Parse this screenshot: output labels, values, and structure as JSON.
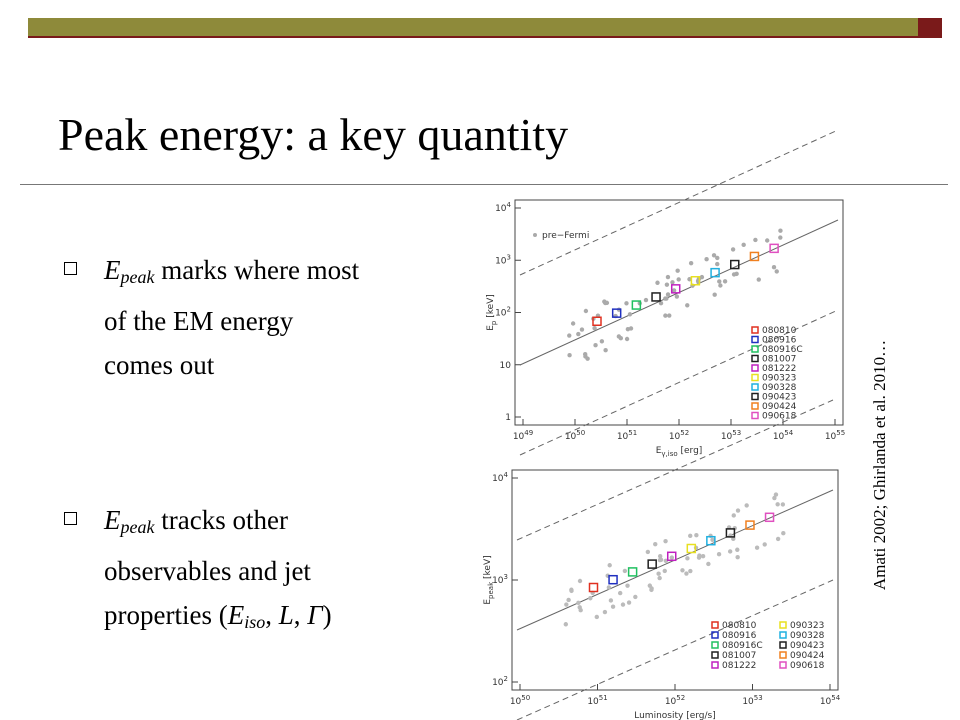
{
  "slide": {
    "title": "Peak energy: a key quantity",
    "bullets": [
      [
        {
          "text": "E",
          "style": "i"
        },
        {
          "text": "peak",
          "style": "sub"
        },
        {
          "text": " marks where most of the EM energy comes out"
        }
      ],
      [
        {
          "text": "E",
          "style": "i"
        },
        {
          "text": "peak",
          "style": "sub"
        },
        {
          "text": " tracks other observables and jet properties ("
        },
        {
          "text": "E",
          "style": "i"
        },
        {
          "text": "iso",
          "style": "sub"
        },
        {
          "text": ", "
        },
        {
          "text": "L",
          "style": "i"
        },
        {
          "text": ", "
        },
        {
          "text": "Γ",
          "style": "i"
        },
        {
          "text": ")"
        }
      ]
    ],
    "citation": "Amati 2002; Ghirlanda et al. 2010…",
    "figures": [
      {
        "xlabel": [
          {
            "text": "E"
          },
          {
            "text": "γ,iso",
            "style": "sub"
          },
          {
            "text": " [erg]"
          }
        ],
        "ylabel": [
          {
            "text": "E"
          },
          {
            "text": "p",
            "style": "sub"
          },
          {
            "text": " [keV]"
          }
        ],
        "xticks": [
          {
            "base": "10",
            "exp": "49"
          },
          {
            "base": "10",
            "exp": "50"
          },
          {
            "base": "10",
            "exp": "51"
          },
          {
            "base": "10",
            "exp": "52"
          },
          {
            "base": "10",
            "exp": "53"
          },
          {
            "base": "10",
            "exp": "54"
          },
          {
            "base": "10",
            "exp": "55"
          }
        ],
        "yticks": [
          {
            "base": "1"
          },
          {
            "base": "10"
          },
          {
            "base": "10",
            "exp": "2"
          },
          {
            "base": "10",
            "exp": "3"
          },
          {
            "base": "10",
            "exp": "4"
          }
        ],
        "note": "pre−Fermi",
        "legend": [
          {
            "name": "080810",
            "color": "#e03020"
          },
          {
            "name": "080916",
            "color": "#2030c0"
          },
          {
            "name": "080916C",
            "color": "#20c060"
          },
          {
            "name": "081007",
            "color": "#202020"
          },
          {
            "name": "081222",
            "color": "#c020c0"
          },
          {
            "name": "090323",
            "color": "#e8e020"
          },
          {
            "name": "090328",
            "color": "#20b0e0"
          },
          {
            "name": "090423",
            "color": "#202020"
          },
          {
            "name": "090424",
            "color": "#f08020"
          },
          {
            "name": "090618",
            "color": "#e050c0"
          }
        ]
      },
      {
        "xlabel": [
          {
            "text": "Luminosity [erg/s]"
          }
        ],
        "ylabel": [
          {
            "text": "E"
          },
          {
            "text": "peak",
            "style": "sub"
          },
          {
            "text": " [keV]"
          }
        ],
        "xticks": [
          {
            "base": "10",
            "exp": "50"
          },
          {
            "base": "10",
            "exp": "51"
          },
          {
            "base": "10",
            "exp": "52"
          },
          {
            "base": "10",
            "exp": "53"
          },
          {
            "base": "10",
            "exp": "54"
          }
        ],
        "yticks": [
          {
            "base": "10",
            "exp": "2"
          },
          {
            "base": "10",
            "exp": "3"
          },
          {
            "base": "10",
            "exp": "4"
          }
        ],
        "legend": [
          {
            "name": "080810",
            "color": "#e03020"
          },
          {
            "name": "080916",
            "color": "#2030c0"
          },
          {
            "name": "080916C",
            "color": "#20c060"
          },
          {
            "name": "081007",
            "color": "#202020"
          },
          {
            "name": "081222",
            "color": "#c020c0"
          },
          {
            "name": "090323",
            "color": "#e8e020"
          },
          {
            "name": "090328",
            "color": "#20b0e0"
          },
          {
            "name": "090423",
            "color": "#202020"
          },
          {
            "name": "090424",
            "color": "#f08020"
          },
          {
            "name": "090618",
            "color": "#e050c0"
          }
        ]
      }
    ]
  }
}
